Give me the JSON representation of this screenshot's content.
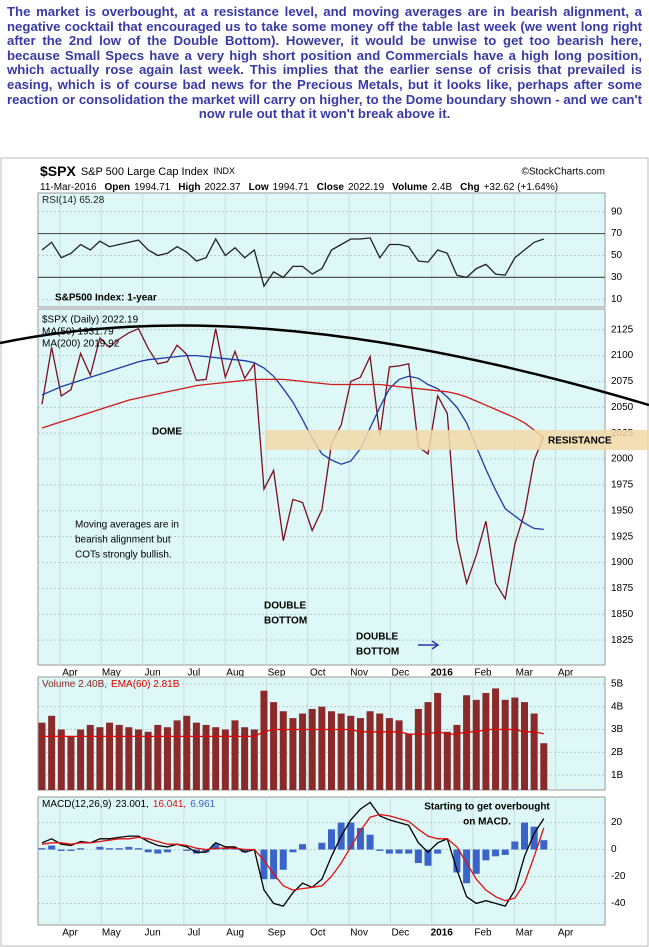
{
  "commentary": "The market is overbought, at a resistance level, and moving averages are in bearish alignment, a negative cocktail that encouraged us to take some money off the table last week (we went long right after the 2nd low of the Double Bottom). However, it would be unwise to get too bearish here, because Small Specs have a very high short position and Commercials have a high long position, which actually rose again last week. This implies that the earlier sense of crisis that prevailed is easing, which is of course bad news for the Precious Metals, but it looks like, perhaps after some reaction or consolidation the market will carry on higher, to the Dome boundary shown - and we can't now rule out that it won't break above it.",
  "header": {
    "symbol": "$SPX",
    "name": "S&P 500 Large Cap Index",
    "exchange": "INDX",
    "source": "©StockCharts.com",
    "date": "11-Mar-2016",
    "fields": [
      {
        "label": "Open",
        "value": 1994.71
      },
      {
        "label": "High",
        "value": 2022.37
      },
      {
        "label": "Low",
        "value": 1994.71
      },
      {
        "label": "Close",
        "value": 2022.19
      },
      {
        "label": "Volume",
        "value": "2.4B"
      },
      {
        "label": "Chg",
        "value": "+32.62 (+1.64%)"
      }
    ]
  },
  "chart_data": [
    {
      "type": "line",
      "categories": [
        null,
        null,
        null,
        null,
        null,
        null,
        null,
        null,
        null,
        null,
        null,
        null,
        null,
        null,
        null,
        null,
        null,
        null,
        null,
        null,
        null,
        null,
        null,
        null,
        null,
        null,
        null,
        null,
        null,
        null,
        null,
        null,
        null,
        null,
        null,
        null,
        null,
        null,
        null,
        null,
        null,
        null,
        null,
        null,
        null,
        null,
        null,
        null,
        null,
        null,
        null,
        null,
        null
      ],
      "series": [
        {
          "name": "RSI(14) 65.28",
          "color": "#222222",
          "values": [
            55,
            62,
            48,
            52,
            60,
            55,
            63,
            58,
            60,
            62,
            64,
            55,
            50,
            52,
            58,
            53,
            45,
            48,
            65,
            50,
            57,
            48,
            55,
            22,
            35,
            30,
            40,
            40,
            33,
            38,
            55,
            60,
            65,
            65,
            66,
            48,
            60,
            60,
            58,
            45,
            44,
            55,
            52,
            32,
            30,
            38,
            42,
            33,
            32,
            48,
            55,
            62,
            65
          ]
        }
      ],
      "ylim": [
        3,
        107
      ],
      "yticks": [
        10,
        30,
        50,
        70,
        90
      ],
      "reference_lines": [
        70,
        30
      ],
      "grid": true
    },
    {
      "type": "line",
      "title": "S&P500 Index: 1-year",
      "categories": [
        null,
        null,
        null,
        null,
        null,
        null,
        null,
        null,
        null,
        null,
        null,
        null,
        null,
        null,
        null,
        null,
        null,
        null,
        null,
        null,
        null,
        null,
        null,
        null,
        null,
        null,
        null,
        null,
        null,
        null,
        null,
        null,
        null,
        null,
        null,
        null,
        null,
        null,
        null,
        null,
        null,
        null,
        null,
        null,
        null,
        null,
        null,
        null,
        null,
        null,
        null,
        null,
        null
      ],
      "series": [
        {
          "name": "$SPX (Daily) 2022.19",
          "color": "#7a1020",
          "values": [
            2053,
            2108,
            2061,
            2067,
            2102,
            2081,
            2117,
            2108,
            2116,
            2122,
            2126,
            2107,
            2092,
            2094,
            2110,
            2101,
            2076,
            2077,
            2126,
            2079,
            2104,
            2078,
            2092,
            1971,
            1989,
            1921,
            1961,
            1958,
            1931,
            1951,
            2015,
            2033,
            2075,
            2079,
            2099,
            2023,
            2089,
            2090,
            2092,
            2012,
            2005,
            2061,
            2044,
            1922,
            1880,
            1907,
            1940,
            1880,
            1865,
            1918,
            1948,
            1999,
            2022
          ]
        },
        {
          "name": "MA(50) 1931.79",
          "color": "#1c3aa8",
          "values": [
            2062,
            2066,
            2070,
            2073,
            2076,
            2079,
            2082,
            2085,
            2088,
            2091,
            2094,
            2096,
            2097,
            2098,
            2099,
            2100,
            2100,
            2099,
            2098,
            2097,
            2096,
            2095,
            2093,
            2088,
            2080,
            2068,
            2055,
            2038,
            2020,
            2005,
            1999,
            1995,
            1998,
            2010,
            2030,
            2050,
            2068,
            2077,
            2080,
            2078,
            2072,
            2068,
            2060,
            2050,
            2035,
            2012,
            1990,
            1970,
            1952,
            1945,
            1938,
            1933,
            1932
          ]
        },
        {
          "name": "MA(200) 2019.92",
          "color": "#d01818",
          "values": [
            2030,
            2033,
            2036,
            2039,
            2042,
            2045,
            2048,
            2051,
            2054,
            2057,
            2059,
            2061,
            2063,
            2065,
            2067,
            2069,
            2071,
            2072,
            2073,
            2074,
            2075,
            2076,
            2077,
            2077,
            2077,
            2077,
            2076,
            2075,
            2074,
            2073,
            2072,
            2072,
            2072,
            2072,
            2072,
            2072,
            2071,
            2070,
            2069,
            2068,
            2067,
            2066,
            2065,
            2063,
            2060,
            2056,
            2052,
            2048,
            2044,
            2040,
            2035,
            2028,
            2020
          ]
        }
      ],
      "ylim": [
        1801,
        2145
      ],
      "yticks": [
        1825,
        1850,
        1875,
        1900,
        1925,
        1950,
        1975,
        2000,
        2025,
        2050,
        2075,
        2100,
        2125
      ],
      "grid": true,
      "months": [
        "Apr",
        "May",
        "Jun",
        "Jul",
        "Aug",
        "Sep",
        "Oct",
        "Nov",
        "Dec",
        "2016",
        "Feb",
        "Mar",
        "Apr"
      ],
      "annotations": [
        [
          "DOME"
        ],
        [
          "RESISTANCE"
        ],
        [
          "Moving averages are in",
          "bearish alignment but",
          "COTs strongly bullish."
        ],
        [
          "DOUBLE",
          "BOTTOM"
        ],
        [
          "DOUBLE",
          "BOTTOM"
        ]
      ]
    },
    {
      "type": "bar",
      "categories": [
        null,
        null,
        null,
        null,
        null,
        null,
        null,
        null,
        null,
        null,
        null,
        null,
        null,
        null,
        null,
        null,
        null,
        null,
        null,
        null,
        null,
        null,
        null,
        null,
        null,
        null,
        null,
        null,
        null,
        null,
        null,
        null,
        null,
        null,
        null,
        null,
        null,
        null,
        null,
        null,
        null,
        null,
        null,
        null,
        null,
        null,
        null,
        null,
        null,
        null,
        null,
        null,
        null
      ],
      "series": [
        {
          "name": "Volume 2.40B,",
          "type": "bar",
          "color": "#8a2a2a",
          "values": [
            3.3,
            3.6,
            3.0,
            2.7,
            3.0,
            3.2,
            3.1,
            3.3,
            3.2,
            3.1,
            3.0,
            2.9,
            3.2,
            3.1,
            3.4,
            3.6,
            3.3,
            3.2,
            3.1,
            3.0,
            3.4,
            3.1,
            3.0,
            4.7,
            4.2,
            3.8,
            3.5,
            3.7,
            3.9,
            4.0,
            3.8,
            3.7,
            3.6,
            3.5,
            3.8,
            3.7,
            3.5,
            3.4,
            2.8,
            3.9,
            4.2,
            4.6,
            2.9,
            3.2,
            4.5,
            4.3,
            4.6,
            4.8,
            4.3,
            4.4,
            4.2,
            3.7,
            2.4
          ]
        },
        {
          "name": "EMA(60) 2.81B",
          "type": "line",
          "color": "#e00000",
          "values": [
            2.7,
            2.7,
            2.7,
            2.7,
            2.7,
            2.7,
            2.7,
            2.7,
            2.7,
            2.7,
            2.7,
            2.7,
            2.7,
            2.7,
            2.7,
            2.7,
            2.7,
            2.7,
            2.7,
            2.7,
            2.7,
            2.7,
            2.7,
            2.9,
            3.0,
            3.0,
            3.0,
            3.0,
            3.0,
            3.0,
            3.0,
            3.0,
            3.0,
            2.9,
            2.9,
            2.9,
            2.9,
            2.9,
            2.8,
            2.8,
            2.8,
            2.9,
            2.8,
            2.8,
            2.9,
            2.9,
            3.0,
            3.0,
            3.0,
            3.0,
            2.9,
            2.9,
            2.81
          ]
        }
      ],
      "ylim": [
        0.35,
        5.3
      ],
      "yticks": [
        {
          "value": 1,
          "label": "1B"
        },
        {
          "value": 2,
          "label": "2B"
        },
        {
          "value": 3,
          "label": "3B"
        },
        {
          "value": 4,
          "label": "4B"
        },
        {
          "value": 5,
          "label": "5B"
        }
      ],
      "grid": true
    },
    {
      "type": "macd",
      "categories": [
        null,
        null,
        null,
        null,
        null,
        null,
        null,
        null,
        null,
        null,
        null,
        null,
        null,
        null,
        null,
        null,
        null,
        null,
        null,
        null,
        null,
        null,
        null,
        null,
        null,
        null,
        null,
        null,
        null,
        null,
        null,
        null,
        null,
        null,
        null,
        null,
        null,
        null,
        null,
        null,
        null,
        null,
        null,
        null,
        null,
        null,
        null,
        null,
        null,
        null,
        null,
        null,
        null
      ],
      "label": "MACD(12,26,9)",
      "series": [
        {
          "name": "6.961",
          "type": "bar",
          "color": "#3a64c8",
          "values": [
            1,
            3,
            -1,
            -1,
            1,
            0,
            2,
            1,
            1,
            2,
            1,
            -2,
            -3,
            -2,
            0,
            -1,
            -3,
            -2,
            4,
            1,
            1,
            -2,
            0,
            -22,
            -22,
            -15,
            -2,
            4,
            0,
            5,
            15,
            20,
            20,
            16,
            11,
            -1,
            -3,
            -3,
            -3,
            -10,
            -12,
            -3,
            0,
            -17,
            -25,
            -18,
            -8,
            -5,
            -4,
            6,
            20,
            17,
            6.961
          ]
        },
        {
          "name": "23.001,",
          "type": "line",
          "color": "#000000",
          "values": [
            5,
            8,
            4,
            3,
            6,
            5,
            8,
            8,
            9,
            10,
            10,
            6,
            3,
            2,
            4,
            2,
            -2,
            -2,
            5,
            2,
            2,
            -2,
            0,
            -30,
            -40,
            -42,
            -32,
            -25,
            -28,
            -22,
            -5,
            10,
            22,
            30,
            35,
            25,
            22,
            20,
            18,
            5,
            -2,
            5,
            8,
            -15,
            -35,
            -40,
            -38,
            -40,
            -42,
            -30,
            -5,
            12,
            23.001
          ]
        },
        {
          "name": "16.041,",
          "type": "line",
          "color": "#e01010",
          "values": [
            4,
            5,
            5,
            4,
            5,
            5,
            6,
            7,
            8,
            8,
            9,
            8,
            6,
            4,
            4,
            3,
            1,
            0,
            1,
            1,
            1,
            0,
            0,
            -8,
            -18,
            -27,
            -30,
            -29,
            -28,
            -27,
            -20,
            -10,
            2,
            14,
            24,
            26,
            25,
            23,
            21,
            15,
            10,
            8,
            8,
            2,
            -10,
            -22,
            -30,
            -35,
            -38,
            -36,
            -25,
            -5,
            16.041
          ]
        }
      ],
      "ylim": [
        -56,
        39
      ],
      "yticks": [
        -40,
        -20,
        0,
        20
      ],
      "grid": true,
      "months": [
        "Apr",
        "May",
        "Jun",
        "Jul",
        "Aug",
        "Sep",
        "Oct",
        "Nov",
        "Dec",
        "2016",
        "Feb",
        "Mar",
        "Apr"
      ],
      "annotations": [
        [
          "Starting to get overbought",
          "on MACD."
        ]
      ]
    }
  ]
}
